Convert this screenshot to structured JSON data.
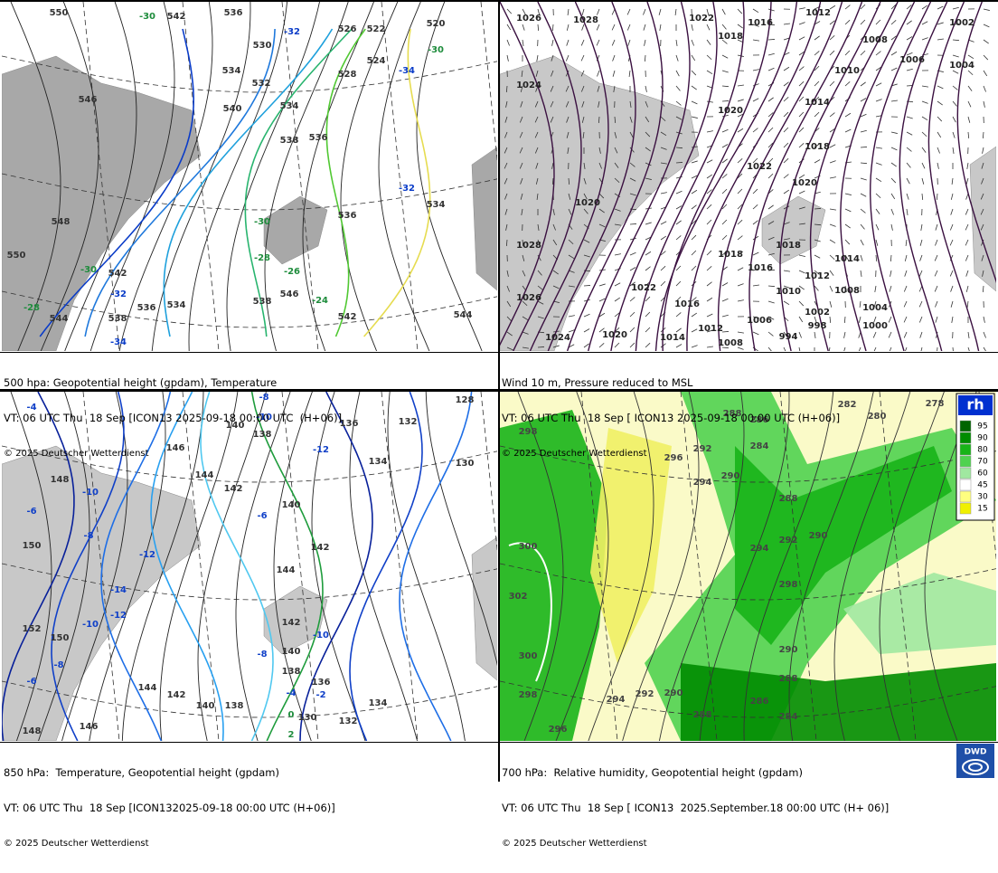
{
  "panels": [
    {
      "caption": [
        "500 hpa: Geopotential height (gpdam), Temperature",
        "VT: 06 UTC Thu  18 Sep [ICON13 2025-09-18 00:00 UTC  (H+06)]",
        "© 2025 Deutscher Wetterdienst"
      ],
      "labels": [
        550,
        546,
        542,
        536,
        530,
        534,
        532,
        540,
        534,
        538,
        536,
        548,
        550,
        544,
        542,
        538,
        536,
        534,
        538,
        546,
        542,
        544,
        536,
        534,
        528,
        526,
        524,
        522,
        520,
        -30,
        -32,
        -34,
        -30,
        -32,
        -30,
        -28,
        -26,
        -24,
        -30,
        -32,
        -34,
        -28
      ]
    },
    {
      "caption": [
        "Wind 10 m, Pressure reduced to MSL",
        "VT: 06 UTC Thu  18 Sep [ ICON13 2025-09-18 00:00 UTC (H+06)]",
        "© 2025 Deutscher Wetterdienst"
      ],
      "labels": [
        1026,
        1028,
        1022,
        1016,
        1012,
        1002,
        1018,
        1008,
        1006,
        1004,
        1010,
        1024,
        1014,
        1020,
        1018,
        1022,
        1020,
        1020,
        1018,
        1018,
        1016,
        1014,
        1028,
        1026,
        1022,
        1012,
        1010,
        1008,
        1004,
        1016,
        1002,
        1006,
        998,
        1000,
        1012,
        994,
        1008,
        1014,
        1020,
        1024
      ]
    },
    {
      "caption": [
        "850 hPa:  Temperature, Geopotential height (gpdam)",
        "VT: 06 UTC Thu  18 Sep [ICON132025-09-18 00:00 UTC (H+06)]",
        "© 2025 Deutscher Wetterdienst"
      ],
      "labels": [
        -4,
        -8,
        -10,
        -12,
        -10,
        -6,
        -8,
        -12,
        -14,
        -12,
        -10,
        -8,
        -6,
        -6,
        -10,
        -8,
        -4,
        -2,
        0,
        2,
        148,
        150,
        152,
        150,
        148,
        146,
        144,
        142,
        140,
        138,
        140,
        138,
        136,
        134,
        132,
        130,
        146,
        144,
        142,
        140,
        138,
        136,
        134,
        132,
        130,
        128,
        140,
        142,
        144,
        142
      ]
    },
    {
      "caption": [
        "700 hPa:  Relative humidity, Geopotential height (gpdam)",
        "VT: 06 UTC Thu  18 Sep [ ICON13  2025.September.18 00:00 UTC (H+ 06)]",
        "© 2025 Deutscher Wetterdienst"
      ],
      "labels": [
        278,
        282,
        280,
        288,
        286,
        284,
        292,
        298,
        296,
        294,
        290,
        288,
        292,
        290,
        294,
        300,
        302,
        298,
        290,
        288,
        300,
        298,
        296,
        294,
        292,
        290,
        288,
        286,
        284
      ]
    }
  ],
  "legend": {
    "title": "rh",
    "levels": [
      "95",
      "90",
      "80",
      "70",
      "60",
      "45",
      "30",
      "15"
    ]
  },
  "logo": "DWD"
}
